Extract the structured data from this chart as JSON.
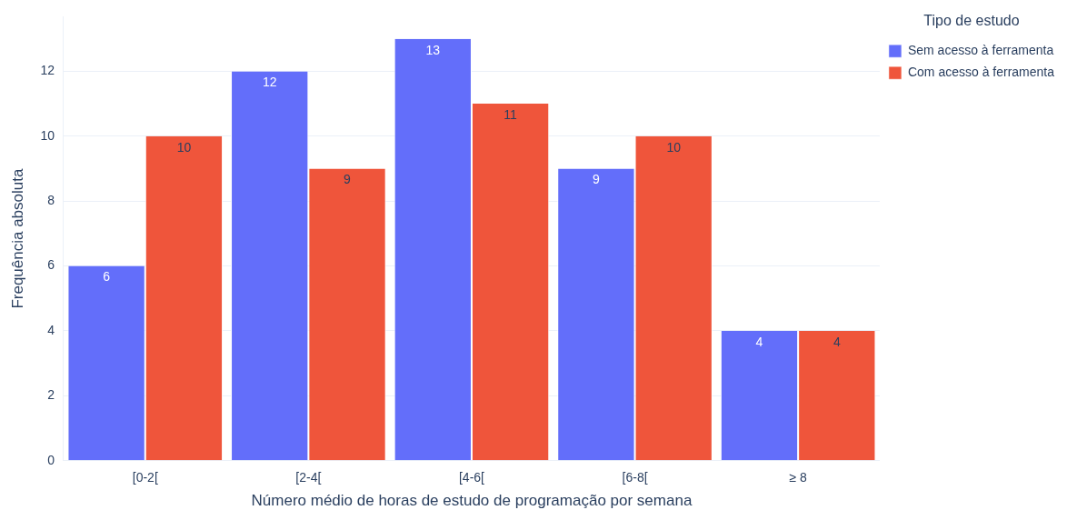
{
  "chart_data": {
    "type": "bar",
    "xlabel": "Número médio de horas de estudo de programação por semana",
    "ylabel": "Frequência absoluta",
    "legend_title": "Tipo de estudo",
    "categories": [
      "[0-2[",
      "[2-4[",
      "[4-6[",
      "[6-8[",
      "≥ 8"
    ],
    "series": [
      {
        "name": "Sem acesso à ferramenta",
        "color": "#636efa",
        "values": [
          6,
          12,
          13,
          9,
          4
        ]
      },
      {
        "name": "Com acesso à ferramenta",
        "color": "#ef553b",
        "values": [
          10,
          9,
          11,
          10,
          4
        ]
      }
    ],
    "ylim": [
      0,
      13.68
    ],
    "yticks": [
      0,
      2,
      4,
      6,
      8,
      10,
      12
    ],
    "grid": "y",
    "legend": "top right",
    "data_labels": true
  }
}
